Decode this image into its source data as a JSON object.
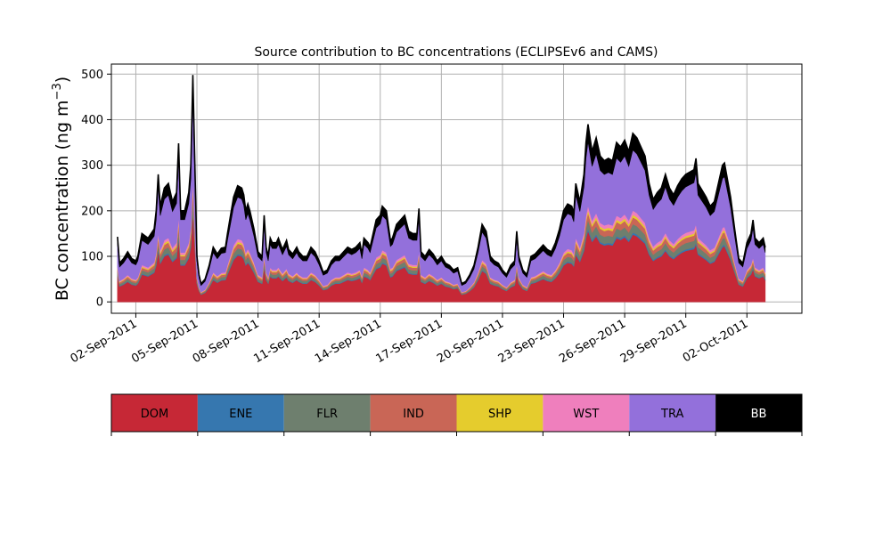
{
  "chart_data": {
    "type": "area",
    "stacked": true,
    "title": "Source contribution to BC concentrations (ECLIPSEv6 and CAMS)",
    "ylabel_main": "BC concentration (ng m",
    "ylabel_sup": "−3",
    "ylabel_close": ")",
    "xlabel": "",
    "ylim": [
      -25,
      522
    ],
    "xlim": [
      -1.2,
      32.7
    ],
    "yticks": [
      "0",
      "100",
      "200",
      "300",
      "400",
      "500"
    ],
    "ytick_values": [
      0,
      100,
      200,
      300,
      400,
      500
    ],
    "xticks": [
      "02-Sep-2011",
      "05-Sep-2011",
      "08-Sep-2011",
      "11-Sep-2011",
      "14-Sep-2011",
      "17-Sep-2011",
      "20-Sep-2011",
      "23-Sep-2011",
      "26-Sep-2011",
      "29-Sep-2011",
      "02-Oct-2011"
    ],
    "xtick_values": [
      0,
      3,
      6,
      9,
      12,
      15,
      18,
      21,
      24,
      27,
      30
    ],
    "grid": true,
    "legend_position": "bottom",
    "x_unit": "days after 02-Sep-2011",
    "total_curve": [
      [
        -0.9,
        143
      ],
      [
        -0.8,
        85
      ],
      [
        -0.6,
        95
      ],
      [
        -0.4,
        110
      ],
      [
        -0.2,
        95
      ],
      [
        0.0,
        90
      ],
      [
        0.1,
        100
      ],
      [
        0.3,
        150
      ],
      [
        0.6,
        140
      ],
      [
        0.9,
        160
      ],
      [
        1.0,
        200
      ],
      [
        1.1,
        280
      ],
      [
        1.2,
        210
      ],
      [
        1.4,
        250
      ],
      [
        1.6,
        260
      ],
      [
        1.8,
        220
      ],
      [
        2.0,
        240
      ],
      [
        2.1,
        348
      ],
      [
        2.2,
        200
      ],
      [
        2.4,
        200
      ],
      [
        2.6,
        240
      ],
      [
        2.7,
        300
      ],
      [
        2.8,
        498
      ],
      [
        2.9,
        300
      ],
      [
        3.0,
        100
      ],
      [
        3.1,
        60
      ],
      [
        3.2,
        40
      ],
      [
        3.4,
        50
      ],
      [
        3.6,
        80
      ],
      [
        3.8,
        120
      ],
      [
        4.0,
        105
      ],
      [
        4.2,
        118
      ],
      [
        4.4,
        120
      ],
      [
        4.5,
        150
      ],
      [
        4.8,
        230
      ],
      [
        5.0,
        255
      ],
      [
        5.2,
        250
      ],
      [
        5.3,
        235
      ],
      [
        5.4,
        200
      ],
      [
        5.5,
        215
      ],
      [
        5.6,
        200
      ],
      [
        5.8,
        160
      ],
      [
        6.0,
        110
      ],
      [
        6.2,
        100
      ],
      [
        6.3,
        190
      ],
      [
        6.4,
        120
      ],
      [
        6.5,
        100
      ],
      [
        6.6,
        140
      ],
      [
        6.7,
        130
      ],
      [
        6.9,
        130
      ],
      [
        7.0,
        140
      ],
      [
        7.2,
        115
      ],
      [
        7.4,
        135
      ],
      [
        7.5,
        115
      ],
      [
        7.7,
        105
      ],
      [
        7.9,
        120
      ],
      [
        8.0,
        110
      ],
      [
        8.2,
        100
      ],
      [
        8.4,
        100
      ],
      [
        8.6,
        120
      ],
      [
        8.8,
        110
      ],
      [
        9.0,
        90
      ],
      [
        9.2,
        65
      ],
      [
        9.4,
        70
      ],
      [
        9.6,
        90
      ],
      [
        9.8,
        100
      ],
      [
        10.0,
        100
      ],
      [
        10.2,
        110
      ],
      [
        10.4,
        120
      ],
      [
        10.6,
        115
      ],
      [
        10.8,
        120
      ],
      [
        11.0,
        130
      ],
      [
        11.1,
        105
      ],
      [
        11.2,
        140
      ],
      [
        11.4,
        130
      ],
      [
        11.5,
        120
      ],
      [
        11.8,
        180
      ],
      [
        12.0,
        190
      ],
      [
        12.1,
        210
      ],
      [
        12.3,
        200
      ],
      [
        12.5,
        135
      ],
      [
        12.6,
        140
      ],
      [
        12.8,
        170
      ],
      [
        13.0,
        180
      ],
      [
        13.2,
        190
      ],
      [
        13.4,
        155
      ],
      [
        13.6,
        150
      ],
      [
        13.8,
        150
      ],
      [
        13.9,
        205
      ],
      [
        14.0,
        110
      ],
      [
        14.2,
        100
      ],
      [
        14.4,
        115
      ],
      [
        14.6,
        105
      ],
      [
        14.8,
        90
      ],
      [
        15.0,
        100
      ],
      [
        15.2,
        85
      ],
      [
        15.4,
        80
      ],
      [
        15.6,
        70
      ],
      [
        15.8,
        75
      ],
      [
        16.0,
        40
      ],
      [
        16.2,
        45
      ],
      [
        16.4,
        60
      ],
      [
        16.6,
        80
      ],
      [
        16.8,
        120
      ],
      [
        17.0,
        170
      ],
      [
        17.2,
        155
      ],
      [
        17.4,
        100
      ],
      [
        17.6,
        90
      ],
      [
        17.8,
        85
      ],
      [
        18.0,
        70
      ],
      [
        18.2,
        60
      ],
      [
        18.4,
        80
      ],
      [
        18.6,
        90
      ],
      [
        18.7,
        155
      ],
      [
        18.8,
        100
      ],
      [
        19.0,
        70
      ],
      [
        19.2,
        60
      ],
      [
        19.4,
        100
      ],
      [
        19.6,
        105
      ],
      [
        19.8,
        115
      ],
      [
        20.0,
        125
      ],
      [
        20.2,
        115
      ],
      [
        20.4,
        110
      ],
      [
        20.6,
        130
      ],
      [
        20.8,
        160
      ],
      [
        21.0,
        200
      ],
      [
        21.2,
        215
      ],
      [
        21.4,
        210
      ],
      [
        21.5,
        195
      ],
      [
        21.6,
        260
      ],
      [
        21.8,
        220
      ],
      [
        22.0,
        280
      ],
      [
        22.1,
        350
      ],
      [
        22.2,
        390
      ],
      [
        22.4,
        330
      ],
      [
        22.6,
        360
      ],
      [
        22.8,
        320
      ],
      [
        23.0,
        310
      ],
      [
        23.2,
        315
      ],
      [
        23.4,
        310
      ],
      [
        23.6,
        350
      ],
      [
        23.8,
        340
      ],
      [
        24.0,
        355
      ],
      [
        24.2,
        330
      ],
      [
        24.4,
        370
      ],
      [
        24.6,
        360
      ],
      [
        24.8,
        340
      ],
      [
        25.0,
        320
      ],
      [
        25.2,
        260
      ],
      [
        25.4,
        225
      ],
      [
        25.6,
        240
      ],
      [
        25.8,
        250
      ],
      [
        26.0,
        280
      ],
      [
        26.2,
        250
      ],
      [
        26.4,
        235
      ],
      [
        26.6,
        255
      ],
      [
        26.8,
        270
      ],
      [
        27.0,
        280
      ],
      [
        27.2,
        285
      ],
      [
        27.4,
        290
      ],
      [
        27.5,
        315
      ],
      [
        27.6,
        260
      ],
      [
        27.8,
        245
      ],
      [
        28.0,
        230
      ],
      [
        28.2,
        210
      ],
      [
        28.4,
        220
      ],
      [
        28.6,
        260
      ],
      [
        28.8,
        300
      ],
      [
        28.9,
        305
      ],
      [
        29.0,
        280
      ],
      [
        29.2,
        230
      ],
      [
        29.4,
        160
      ],
      [
        29.6,
        95
      ],
      [
        29.8,
        85
      ],
      [
        30.0,
        130
      ],
      [
        30.2,
        150
      ],
      [
        30.3,
        180
      ],
      [
        30.4,
        140
      ],
      [
        30.6,
        130
      ],
      [
        30.8,
        140
      ],
      [
        30.9,
        120
      ]
    ],
    "series": [
      {
        "name": "DOM",
        "color": "#c62836",
        "fraction": 0.4
      },
      {
        "name": "ENE",
        "color": "#3677af",
        "fraction": 0.012
      },
      {
        "name": "FLR",
        "color": "#6e7f6e",
        "fraction": 0.05
      },
      {
        "name": "IND",
        "color": "#c96656",
        "fraction": 0.04
      },
      {
        "name": "SHP",
        "color": "#e5cc2d",
        "fraction": 0.015
      },
      {
        "name": "WST",
        "color": "#ef7fbd",
        "fraction": 0.025
      },
      {
        "name": "TRA",
        "color": "#9370db",
        "fraction": 0.36
      },
      {
        "name": "BB",
        "color": "#000000",
        "fraction": 0.098
      }
    ],
    "legend_text_colors": [
      "#000000",
      "#000000",
      "#000000",
      "#000000",
      "#000000",
      "#000000",
      "#000000",
      "#ffffff"
    ]
  }
}
